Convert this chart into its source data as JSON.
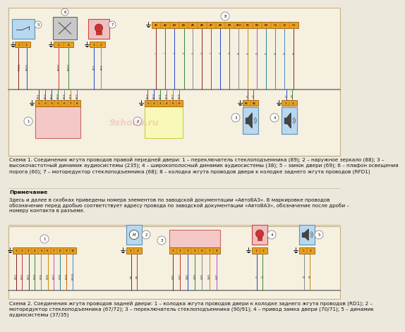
{
  "bg_color": "#ede8dc",
  "schema1_caption": "Схема 1. Соединения жгута проводов правой передней двери: 1 – переключатель стеклоподъемника (89); 2 – наружное зеркало (88); 3 –\nвысокочастотный динамик аудиосистемы (235); 4 – широкополосный динамик аудиосистемы (38); 5 – замок двери (69); 6 – плафон освещения\nпорога (60); 7 – моторедуктор стеклоподъемника (68); 8 – колодка жгута проводов двери к колодке заднего жгута проводов (RFD1)",
  "note_title": "Примечание",
  "note_text": "Здесь и далее в скобках приведены номера элементов по заводской документации «АвтоВАЗ». В маркировке проводов\nобозначение перед дробью соответствует адресу провода по заводской документации «АвтоВАЗ», обозначение после дроби –\nномеру контакта в разъеме.",
  "schema2_caption": "Схема 2. Соединения жгута проводов задней двери: 1 – колодка жгута проводов двери к колодке заднего жгута проводов (RD1); 2 –\nмоторедуктор стеклоподъемника (67/72); 3 – переключатель стеклоподъемника (90/91); 4 – привод замка двери (70/71); 5 – динамик\nаудиосистемы (37/35)",
  "watermark": "9shomi.ru",
  "panel_pink": "#f5c8c8",
  "panel_yellow": "#f8f8b8",
  "panel_blue": "#b8d8f0",
  "conn_fill": "#e8a020",
  "conn_edge": "#9a6010",
  "box_bg": "#f5f0e0",
  "border_color": "#c8b080",
  "gray_box": "#c8c8c8",
  "wire_colors": [
    "#8b2020",
    "#cc3333",
    "#2244cc",
    "#338833",
    "#888888",
    "#cc8800",
    "#cc44cc",
    "#228888",
    "#cc6600",
    "#4488cc"
  ],
  "bus_color": "#808080"
}
